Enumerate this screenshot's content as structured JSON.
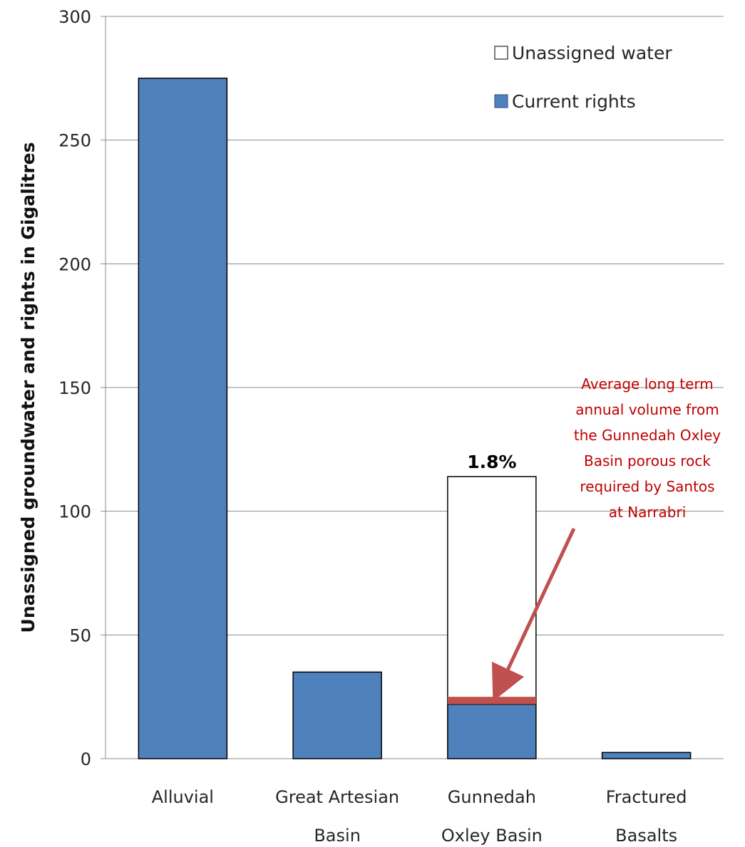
{
  "chart_data": {
    "type": "bar",
    "stacked": true,
    "categories": [
      [
        "Alluvial"
      ],
      [
        "Great Artesian",
        "Basin"
      ],
      [
        "Gunnedah",
        "Oxley Basin"
      ],
      [
        "Fractured",
        "Basalts"
      ]
    ],
    "series": [
      {
        "name": "Current rights",
        "values": [
          275,
          35,
          22,
          2.5
        ]
      },
      {
        "name": "Unassigned water",
        "values": [
          0,
          0,
          92,
          0
        ]
      }
    ],
    "highlight": {
      "category_index": 2,
      "from": 22,
      "to": 25,
      "label": "1.8%"
    },
    "annotation": {
      "lines": [
        "Average long term",
        "annual volume from",
        "the Gunnedah Oxley",
        "Basin porous rock",
        "required by Santos",
        "at Narrabri"
      ]
    },
    "title": "",
    "xlabel": "",
    "ylabel": "Unassigned groundwater  and rights in Gigalitres",
    "ylim": [
      0,
      300
    ],
    "yticks": [
      0,
      50,
      100,
      150,
      200,
      250,
      300
    ],
    "grid": true,
    "legend_position": "top-right",
    "colors": {
      "current_rights": "#4f81bd",
      "unassigned_water": "#ffffff",
      "highlight": "#c0504d",
      "annotation": "#c00000",
      "grid": "#8c8c8c",
      "bar_border": "#000000"
    }
  }
}
